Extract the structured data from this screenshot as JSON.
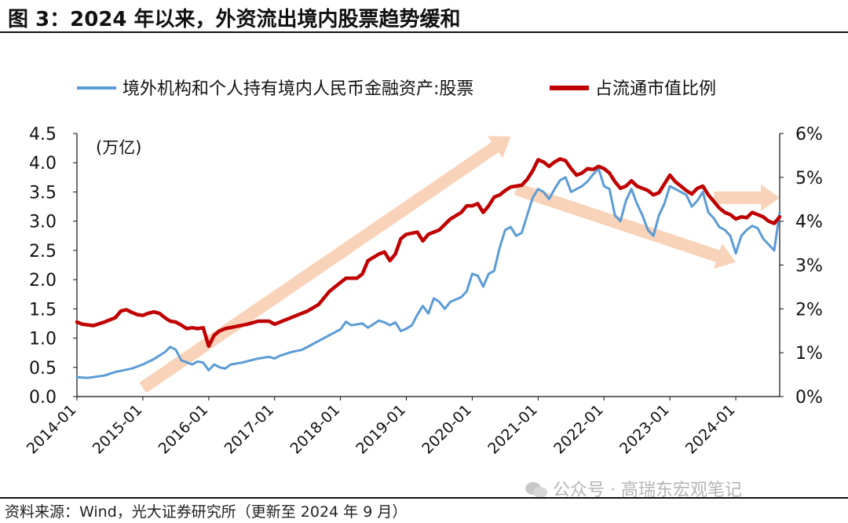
{
  "header": {
    "title": "图 3：2024 年以来，外资流出境内股票趋势缓和"
  },
  "footer": {
    "source": "资料来源：Wind，光大证券研究所（更新至 2024 年 9 月）"
  },
  "watermark": {
    "text": "公众号 · 高瑞东宏观笔记"
  },
  "chart_data": {
    "type": "line",
    "unit_label": "(万亿)",
    "x_ticks": [
      "2014-01",
      "2015-01",
      "2016-01",
      "2017-01",
      "2018-01",
      "2019-01",
      "2020-01",
      "2021-01",
      "2022-01",
      "2023-01",
      "2024-01"
    ],
    "xlim": [
      "2014-01",
      "2024-09"
    ],
    "left_axis": {
      "ylim": [
        0,
        4.5
      ],
      "ticks": [
        "0.0",
        "0.5",
        "1.0",
        "1.5",
        "2.0",
        "2.5",
        "3.0",
        "3.5",
        "4.0",
        "4.5"
      ]
    },
    "right_axis": {
      "ylim": [
        0,
        6
      ],
      "ticks": [
        "0%",
        "1%",
        "2%",
        "3%",
        "4%",
        "5%",
        "6%"
      ]
    },
    "legend_position": "top",
    "series": [
      {
        "name": "境外机构和个人持有境内人民币金融资产:股票",
        "axis": "left",
        "color": "#5b9bd5",
        "points": [
          [
            "2014-01",
            0.33
          ],
          [
            "2014-03",
            0.32
          ],
          [
            "2014-06",
            0.36
          ],
          [
            "2014-08",
            0.42
          ],
          [
            "2014-11",
            0.48
          ],
          [
            "2015-01",
            0.55
          ],
          [
            "2015-03",
            0.64
          ],
          [
            "2015-05",
            0.76
          ],
          [
            "2015-06",
            0.85
          ],
          [
            "2015-07",
            0.8
          ],
          [
            "2015-08",
            0.62
          ],
          [
            "2015-10",
            0.55
          ],
          [
            "2015-11",
            0.6
          ],
          [
            "2015-12",
            0.58
          ],
          [
            "2016-01",
            0.45
          ],
          [
            "2016-02",
            0.55
          ],
          [
            "2016-03",
            0.5
          ],
          [
            "2016-04",
            0.48
          ],
          [
            "2016-05",
            0.55
          ],
          [
            "2016-07",
            0.58
          ],
          [
            "2016-10",
            0.65
          ],
          [
            "2016-12",
            0.68
          ],
          [
            "2017-01",
            0.65
          ],
          [
            "2017-02",
            0.7
          ],
          [
            "2017-04",
            0.76
          ],
          [
            "2017-06",
            0.8
          ],
          [
            "2017-08",
            0.9
          ],
          [
            "2017-10",
            1.0
          ],
          [
            "2017-12",
            1.1
          ],
          [
            "2018-01",
            1.15
          ],
          [
            "2018-02",
            1.28
          ],
          [
            "2018-03",
            1.22
          ],
          [
            "2018-05",
            1.25
          ],
          [
            "2018-06",
            1.18
          ],
          [
            "2018-08",
            1.3
          ],
          [
            "2018-09",
            1.27
          ],
          [
            "2018-10",
            1.22
          ],
          [
            "2018-11",
            1.27
          ],
          [
            "2018-12",
            1.12
          ],
          [
            "2019-01",
            1.16
          ],
          [
            "2019-02",
            1.22
          ],
          [
            "2019-03",
            1.4
          ],
          [
            "2019-04",
            1.55
          ],
          [
            "2019-05",
            1.42
          ],
          [
            "2019-06",
            1.68
          ],
          [
            "2019-07",
            1.62
          ],
          [
            "2019-08",
            1.5
          ],
          [
            "2019-09",
            1.62
          ],
          [
            "2019-11",
            1.7
          ],
          [
            "2019-12",
            1.8
          ],
          [
            "2020-01",
            2.1
          ],
          [
            "2020-02",
            2.07
          ],
          [
            "2020-03",
            1.88
          ],
          [
            "2020-04",
            2.1
          ],
          [
            "2020-05",
            2.15
          ],
          [
            "2020-06",
            2.55
          ],
          [
            "2020-07",
            2.85
          ],
          [
            "2020-08",
            2.9
          ],
          [
            "2020-09",
            2.75
          ],
          [
            "2020-10",
            2.8
          ],
          [
            "2020-11",
            3.1
          ],
          [
            "2020-12",
            3.4
          ],
          [
            "2021-01",
            3.55
          ],
          [
            "2021-02",
            3.5
          ],
          [
            "2021-03",
            3.38
          ],
          [
            "2021-04",
            3.55
          ],
          [
            "2021-05",
            3.7
          ],
          [
            "2021-06",
            3.75
          ],
          [
            "2021-07",
            3.5
          ],
          [
            "2021-08",
            3.55
          ],
          [
            "2021-09",
            3.6
          ],
          [
            "2021-10",
            3.68
          ],
          [
            "2021-11",
            3.8
          ],
          [
            "2021-12",
            3.9
          ],
          [
            "2022-01",
            3.6
          ],
          [
            "2022-02",
            3.55
          ],
          [
            "2022-03",
            3.1
          ],
          [
            "2022-04",
            3.0
          ],
          [
            "2022-05",
            3.35
          ],
          [
            "2022-06",
            3.55
          ],
          [
            "2022-07",
            3.3
          ],
          [
            "2022-08",
            3.1
          ],
          [
            "2022-09",
            2.85
          ],
          [
            "2022-10",
            2.75
          ],
          [
            "2022-11",
            3.1
          ],
          [
            "2022-12",
            3.3
          ],
          [
            "2023-01",
            3.6
          ],
          [
            "2023-02",
            3.55
          ],
          [
            "2023-03",
            3.5
          ],
          [
            "2023-04",
            3.45
          ],
          [
            "2023-05",
            3.25
          ],
          [
            "2023-06",
            3.35
          ],
          [
            "2023-07",
            3.5
          ],
          [
            "2023-08",
            3.15
          ],
          [
            "2023-09",
            3.05
          ],
          [
            "2023-10",
            2.9
          ],
          [
            "2023-11",
            2.85
          ],
          [
            "2023-12",
            2.75
          ],
          [
            "2024-01",
            2.45
          ],
          [
            "2024-02",
            2.75
          ],
          [
            "2024-03",
            2.85
          ],
          [
            "2024-04",
            2.92
          ],
          [
            "2024-05",
            2.88
          ],
          [
            "2024-06",
            2.7
          ],
          [
            "2024-07",
            2.6
          ],
          [
            "2024-08",
            2.5
          ],
          [
            "2024-09",
            3.15
          ]
        ]
      },
      {
        "name": "占流通市值比例",
        "axis": "right",
        "color": "#c00000",
        "points": [
          [
            "2014-01",
            1.7
          ],
          [
            "2014-02",
            1.65
          ],
          [
            "2014-04",
            1.62
          ],
          [
            "2014-06",
            1.7
          ],
          [
            "2014-08",
            1.8
          ],
          [
            "2014-09",
            1.95
          ],
          [
            "2014-10",
            1.98
          ],
          [
            "2014-11",
            1.92
          ],
          [
            "2014-12",
            1.87
          ],
          [
            "2015-01",
            1.85
          ],
          [
            "2015-02",
            1.9
          ],
          [
            "2015-03",
            1.93
          ],
          [
            "2015-04",
            1.9
          ],
          [
            "2015-05",
            1.8
          ],
          [
            "2015-06",
            1.72
          ],
          [
            "2015-07",
            1.7
          ],
          [
            "2015-08",
            1.63
          ],
          [
            "2015-09",
            1.55
          ],
          [
            "2015-10",
            1.57
          ],
          [
            "2015-11",
            1.55
          ],
          [
            "2015-12",
            1.57
          ],
          [
            "2016-01",
            1.15
          ],
          [
            "2016-02",
            1.4
          ],
          [
            "2016-03",
            1.5
          ],
          [
            "2016-04",
            1.55
          ],
          [
            "2016-06",
            1.6
          ],
          [
            "2016-08",
            1.65
          ],
          [
            "2016-10",
            1.72
          ],
          [
            "2016-12",
            1.72
          ],
          [
            "2017-01",
            1.65
          ],
          [
            "2017-03",
            1.75
          ],
          [
            "2017-05",
            1.85
          ],
          [
            "2017-07",
            1.95
          ],
          [
            "2017-09",
            2.1
          ],
          [
            "2017-11",
            2.4
          ],
          [
            "2018-01",
            2.6
          ],
          [
            "2018-02",
            2.7
          ],
          [
            "2018-04",
            2.7
          ],
          [
            "2018-05",
            2.8
          ],
          [
            "2018-06",
            3.1
          ],
          [
            "2018-08",
            3.25
          ],
          [
            "2018-09",
            3.3
          ],
          [
            "2018-10",
            3.1
          ],
          [
            "2018-11",
            3.25
          ],
          [
            "2018-12",
            3.6
          ],
          [
            "2019-01",
            3.7
          ],
          [
            "2019-03",
            3.75
          ],
          [
            "2019-04",
            3.55
          ],
          [
            "2019-05",
            3.7
          ],
          [
            "2019-07",
            3.8
          ],
          [
            "2019-09",
            4.05
          ],
          [
            "2019-11",
            4.2
          ],
          [
            "2019-12",
            4.35
          ],
          [
            "2020-01",
            4.35
          ],
          [
            "2020-02",
            4.4
          ],
          [
            "2020-03",
            4.2
          ],
          [
            "2020-04",
            4.35
          ],
          [
            "2020-05",
            4.55
          ],
          [
            "2020-06",
            4.6
          ],
          [
            "2020-07",
            4.7
          ],
          [
            "2020-08",
            4.78
          ],
          [
            "2020-09",
            4.8
          ],
          [
            "2020-10",
            4.82
          ],
          [
            "2020-11",
            4.95
          ],
          [
            "2020-12",
            5.15
          ],
          [
            "2021-01",
            5.4
          ],
          [
            "2021-02",
            5.35
          ],
          [
            "2021-03",
            5.25
          ],
          [
            "2021-04",
            5.35
          ],
          [
            "2021-05",
            5.42
          ],
          [
            "2021-06",
            5.38
          ],
          [
            "2021-07",
            5.2
          ],
          [
            "2021-08",
            5.05
          ],
          [
            "2021-09",
            5.1
          ],
          [
            "2021-10",
            5.2
          ],
          [
            "2021-11",
            5.18
          ],
          [
            "2021-12",
            5.25
          ],
          [
            "2022-01",
            5.2
          ],
          [
            "2022-02",
            5.1
          ],
          [
            "2022-03",
            4.9
          ],
          [
            "2022-04",
            4.75
          ],
          [
            "2022-05",
            4.8
          ],
          [
            "2022-06",
            4.92
          ],
          [
            "2022-07",
            4.8
          ],
          [
            "2022-08",
            4.75
          ],
          [
            "2022-09",
            4.7
          ],
          [
            "2022-10",
            4.6
          ],
          [
            "2022-11",
            4.65
          ],
          [
            "2022-12",
            4.85
          ],
          [
            "2023-01",
            5.05
          ],
          [
            "2023-02",
            4.9
          ],
          [
            "2023-03",
            4.8
          ],
          [
            "2023-04",
            4.7
          ],
          [
            "2023-05",
            4.62
          ],
          [
            "2023-06",
            4.75
          ],
          [
            "2023-07",
            4.8
          ],
          [
            "2023-08",
            4.6
          ],
          [
            "2023-09",
            4.45
          ],
          [
            "2023-10",
            4.3
          ],
          [
            "2023-11",
            4.2
          ],
          [
            "2023-12",
            4.15
          ],
          [
            "2024-01",
            4.05
          ],
          [
            "2024-02",
            4.1
          ],
          [
            "2024-03",
            4.08
          ],
          [
            "2024-04",
            4.2
          ],
          [
            "2024-05",
            4.15
          ],
          [
            "2024-06",
            4.1
          ],
          [
            "2024-07",
            4.0
          ],
          [
            "2024-08",
            3.95
          ],
          [
            "2024-09",
            4.1
          ]
        ]
      }
    ],
    "trend_arrows": {
      "color": "#f8cbad",
      "items": [
        {
          "from": [
            "2015-01",
            0.15
          ],
          "to": [
            "2020-08",
            4.45
          ]
        },
        {
          "from": [
            "2020-09",
            3.55
          ],
          "to": [
            "2024-01",
            2.3
          ]
        },
        {
          "from": [
            "2023-09",
            3.4
          ],
          "to": [
            "2024-09",
            3.4
          ]
        }
      ]
    }
  }
}
